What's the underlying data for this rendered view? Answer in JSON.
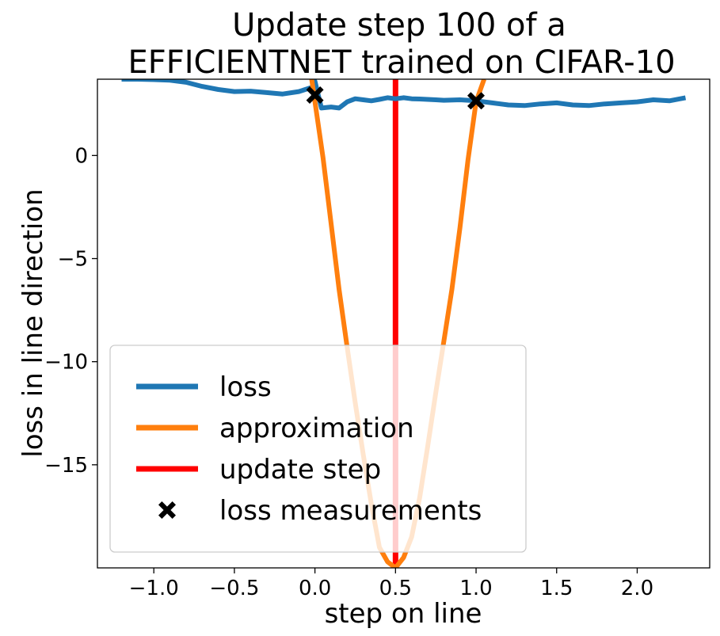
{
  "chart_data": {
    "type": "line",
    "title_line1": "Update step 100 of a",
    "title_line2": "EFFICIENTNET trained on CIFAR-10",
    "xlabel": "step on line",
    "ylabel": "loss in line direction",
    "xlim": [
      -1.35,
      2.45
    ],
    "ylim": [
      -20.0,
      3.7
    ],
    "xticks": [
      -1.0,
      -0.5,
      0.0,
      0.5,
      1.0,
      1.5,
      2.0
    ],
    "xtick_labels": [
      "−1.0",
      "−0.5",
      "0.0",
      "0.5",
      "1.0",
      "1.5",
      "2.0"
    ],
    "yticks": [
      0,
      -5,
      -10,
      -15
    ],
    "ytick_labels": [
      "0",
      "−5",
      "−10",
      "−15"
    ],
    "grid": false,
    "legend_position": "lower-left",
    "colors": {
      "loss": "#1f77b4",
      "approximation": "#ff7f0e",
      "update_step": "#ff0000",
      "measurements": "#000000"
    },
    "series": [
      {
        "name": "loss",
        "x": [
          -1.2,
          -1.1,
          -1.0,
          -0.9,
          -0.8,
          -0.7,
          -0.6,
          -0.5,
          -0.4,
          -0.3,
          -0.2,
          -0.1,
          -0.02,
          0.0,
          0.04,
          0.1,
          0.15,
          0.2,
          0.25,
          0.3,
          0.35,
          0.4,
          0.45,
          0.5,
          0.55,
          0.6,
          0.65,
          0.7,
          0.75,
          0.8,
          0.9,
          1.0,
          1.1,
          1.2,
          1.3,
          1.4,
          1.5,
          1.6,
          1.7,
          1.8,
          1.9,
          2.0,
          2.1,
          2.2,
          2.3
        ],
        "y": [
          3.7,
          3.7,
          3.68,
          3.65,
          3.55,
          3.35,
          3.2,
          3.1,
          3.12,
          3.05,
          2.98,
          3.1,
          3.3,
          3.6,
          2.3,
          2.35,
          2.3,
          2.6,
          2.75,
          2.7,
          2.65,
          2.72,
          2.8,
          2.75,
          2.8,
          2.75,
          2.74,
          2.72,
          2.7,
          2.68,
          2.7,
          2.65,
          2.55,
          2.45,
          2.42,
          2.5,
          2.55,
          2.45,
          2.42,
          2.5,
          2.55,
          2.6,
          2.7,
          2.65,
          2.8
        ]
      },
      {
        "name": "approximation",
        "x": [
          -0.02,
          0.05,
          0.1,
          0.15,
          0.2,
          0.25,
          0.3,
          0.35,
          0.4,
          0.45,
          0.5,
          0.55,
          0.6,
          0.65,
          0.7,
          0.75,
          0.8,
          0.85,
          0.9,
          0.95,
          1.0,
          1.05
        ],
        "y": [
          3.7,
          -0.1,
          -3.3,
          -6.5,
          -9.3,
          -12.0,
          -14.5,
          -16.9,
          -19.0,
          -19.7,
          -20.0,
          -19.5,
          -18.5,
          -16.6,
          -14.1,
          -11.5,
          -9.0,
          -6.5,
          -3.5,
          -0.2,
          2.6,
          3.7
        ]
      }
    ],
    "update_step_x": 0.5,
    "measurements": {
      "x": [
        0.0,
        1.0
      ],
      "y": [
        2.93,
        2.65
      ]
    },
    "legend": [
      {
        "label": "loss",
        "kind": "line",
        "color_key": "loss"
      },
      {
        "label": "approximation",
        "kind": "line",
        "color_key": "approximation"
      },
      {
        "label": "update step",
        "kind": "line",
        "color_key": "update_step"
      },
      {
        "label": "loss measurements",
        "kind": "marker",
        "color_key": "measurements"
      }
    ]
  }
}
